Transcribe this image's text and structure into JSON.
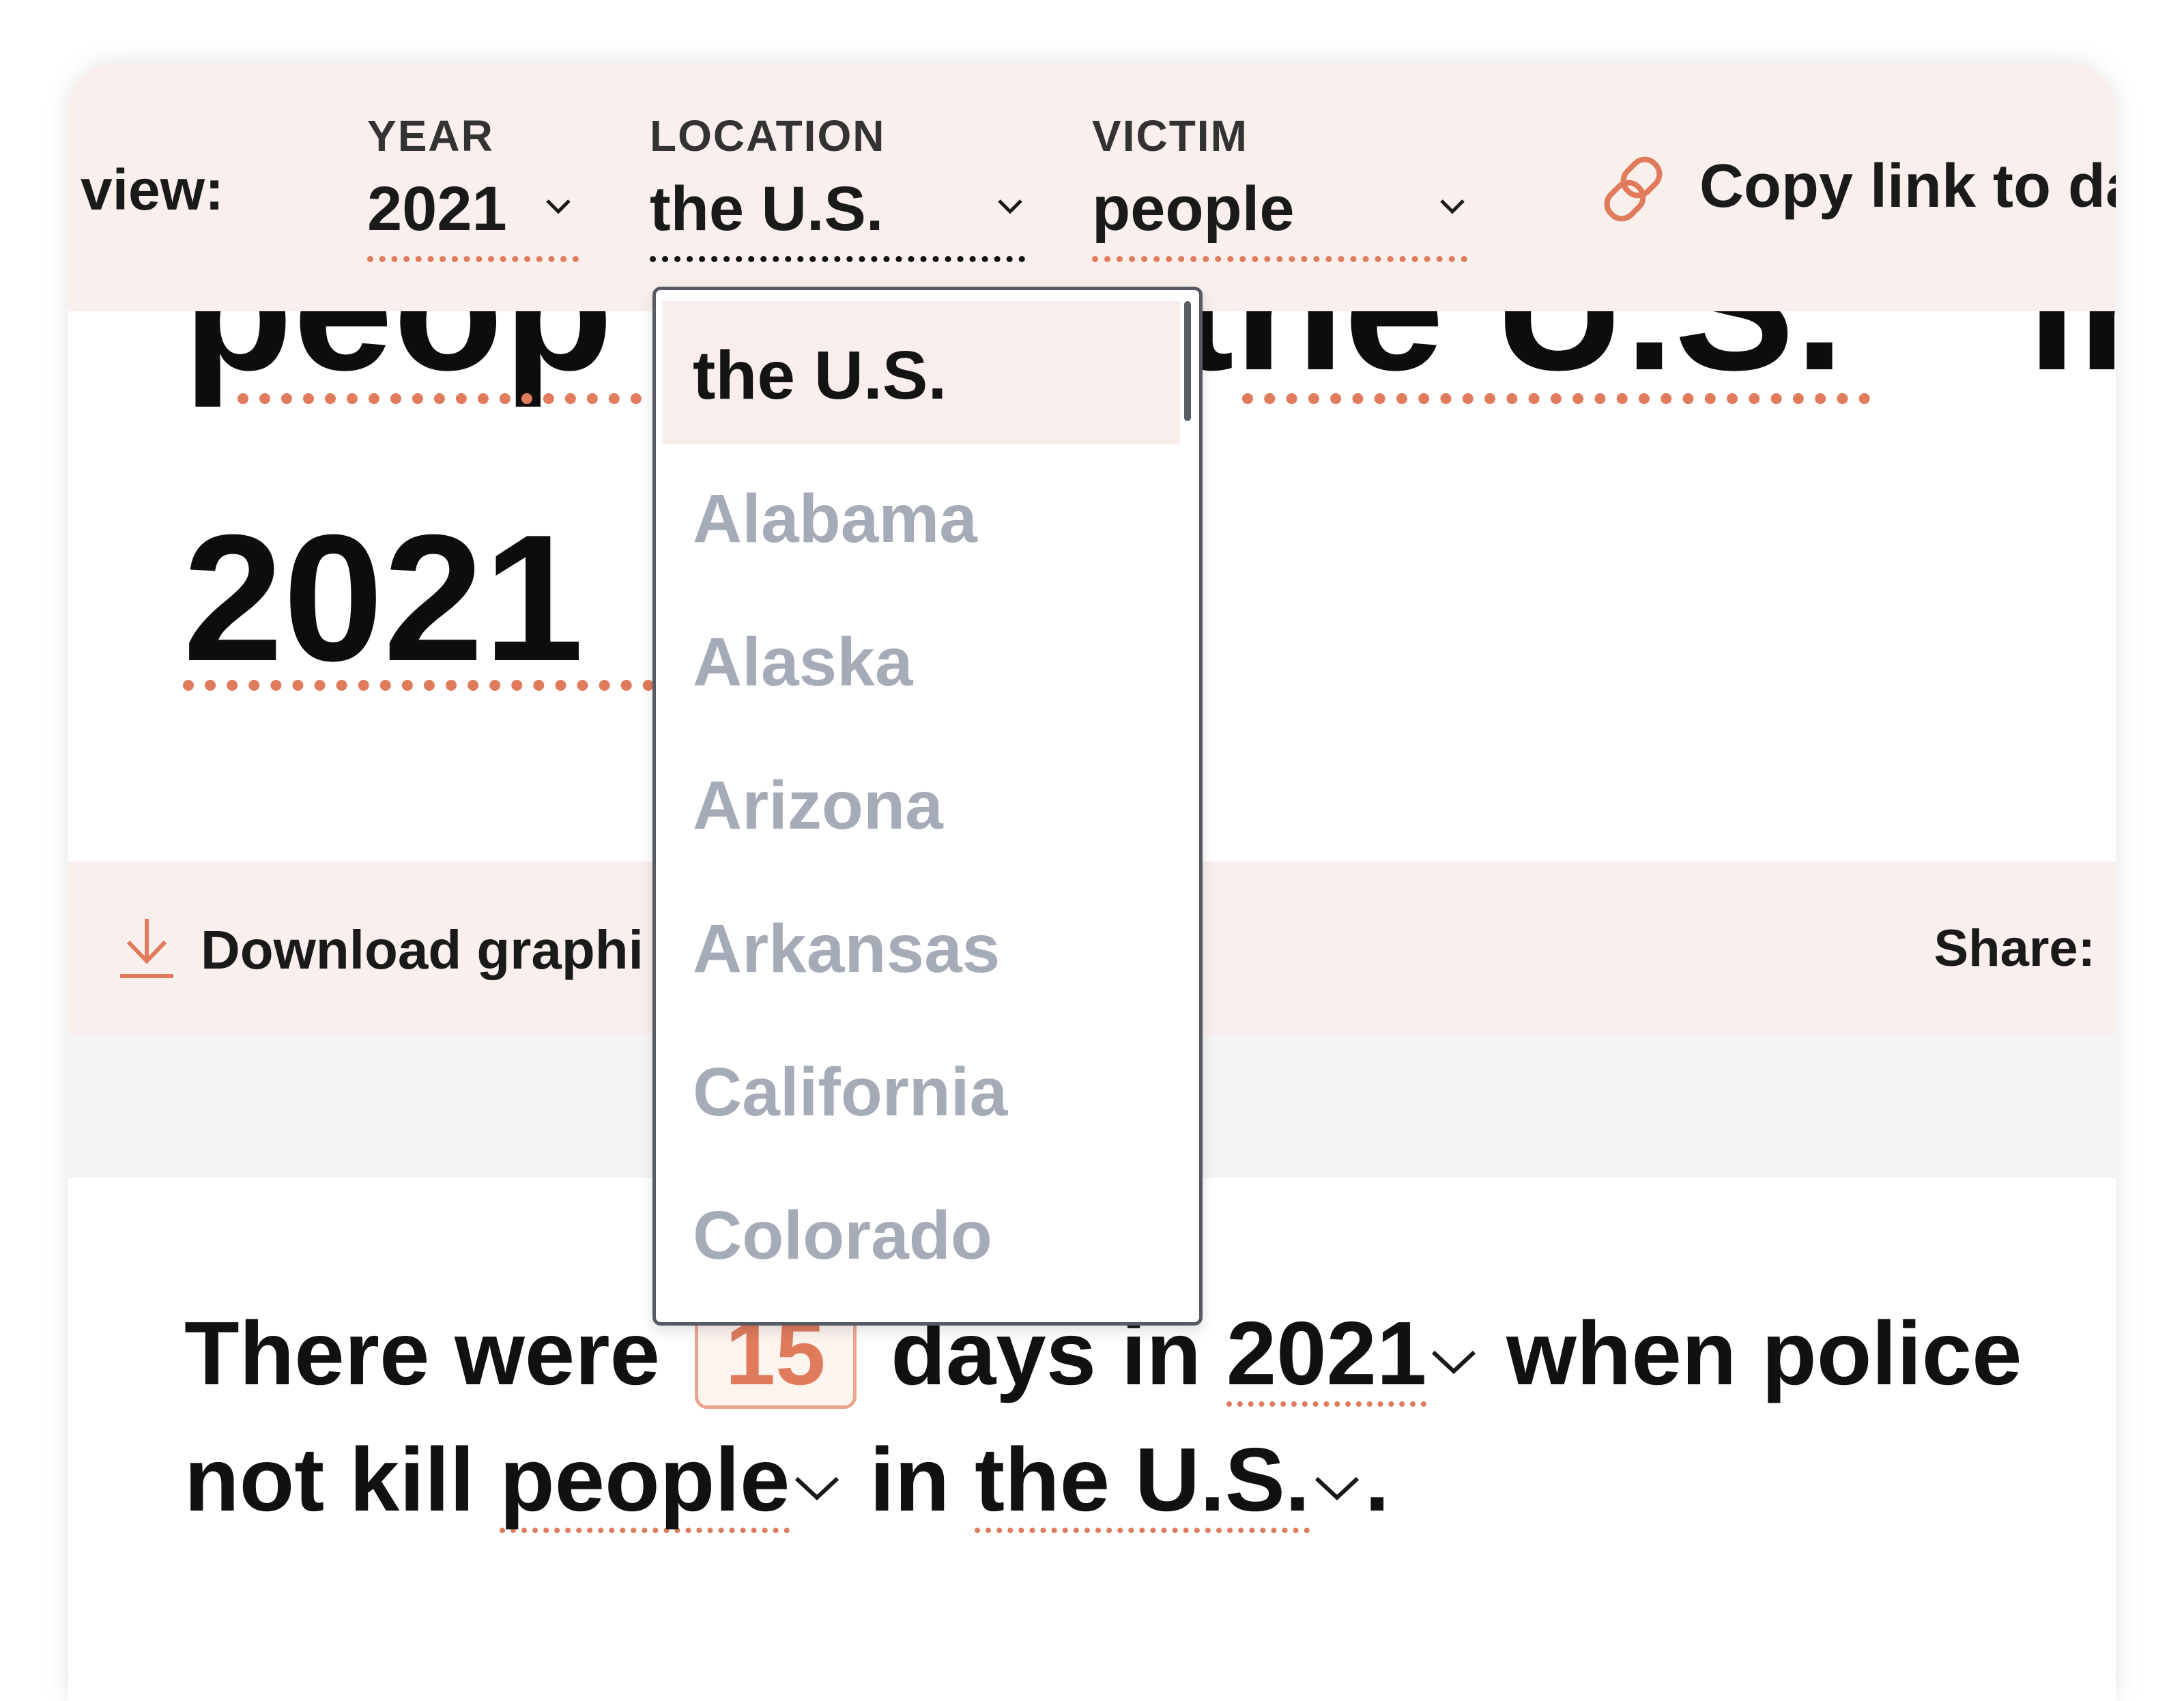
{
  "filter_bar": {
    "view_label": "view:",
    "year": {
      "label": "YEAR",
      "value": "2021"
    },
    "location": {
      "label": "LOCATION",
      "value": "the U.S."
    },
    "victim": {
      "label": "VICTIM",
      "value": "people"
    },
    "copy_link": "Copy link to da"
  },
  "heading": {
    "line1_visible": "peop",
    "line1_right": "the U.S.",
    "line1_tail": "in",
    "line2": "2021"
  },
  "download_bar": {
    "download_label": "Download graphi",
    "share_label": "Share:"
  },
  "sentence": {
    "part1": "There were",
    "count": "15",
    "part2": "days in",
    "year": "2021",
    "part3": "when police",
    "part4": "not kill",
    "victim": "people",
    "part5": "in",
    "location": "the U.S.",
    "end": "."
  },
  "location_dropdown": {
    "options": [
      "the U.S.",
      "Alabama",
      "Alaska",
      "Arizona",
      "Arkansas",
      "California",
      "Colorado"
    ],
    "selected": "the U.S."
  },
  "colors": {
    "accent": "#e07b5c",
    "bar_background": "#f9f0ee",
    "option_disabled": "#a6acb7"
  },
  "icons": [
    "chevron-down-icon",
    "link-icon",
    "download-icon"
  ]
}
